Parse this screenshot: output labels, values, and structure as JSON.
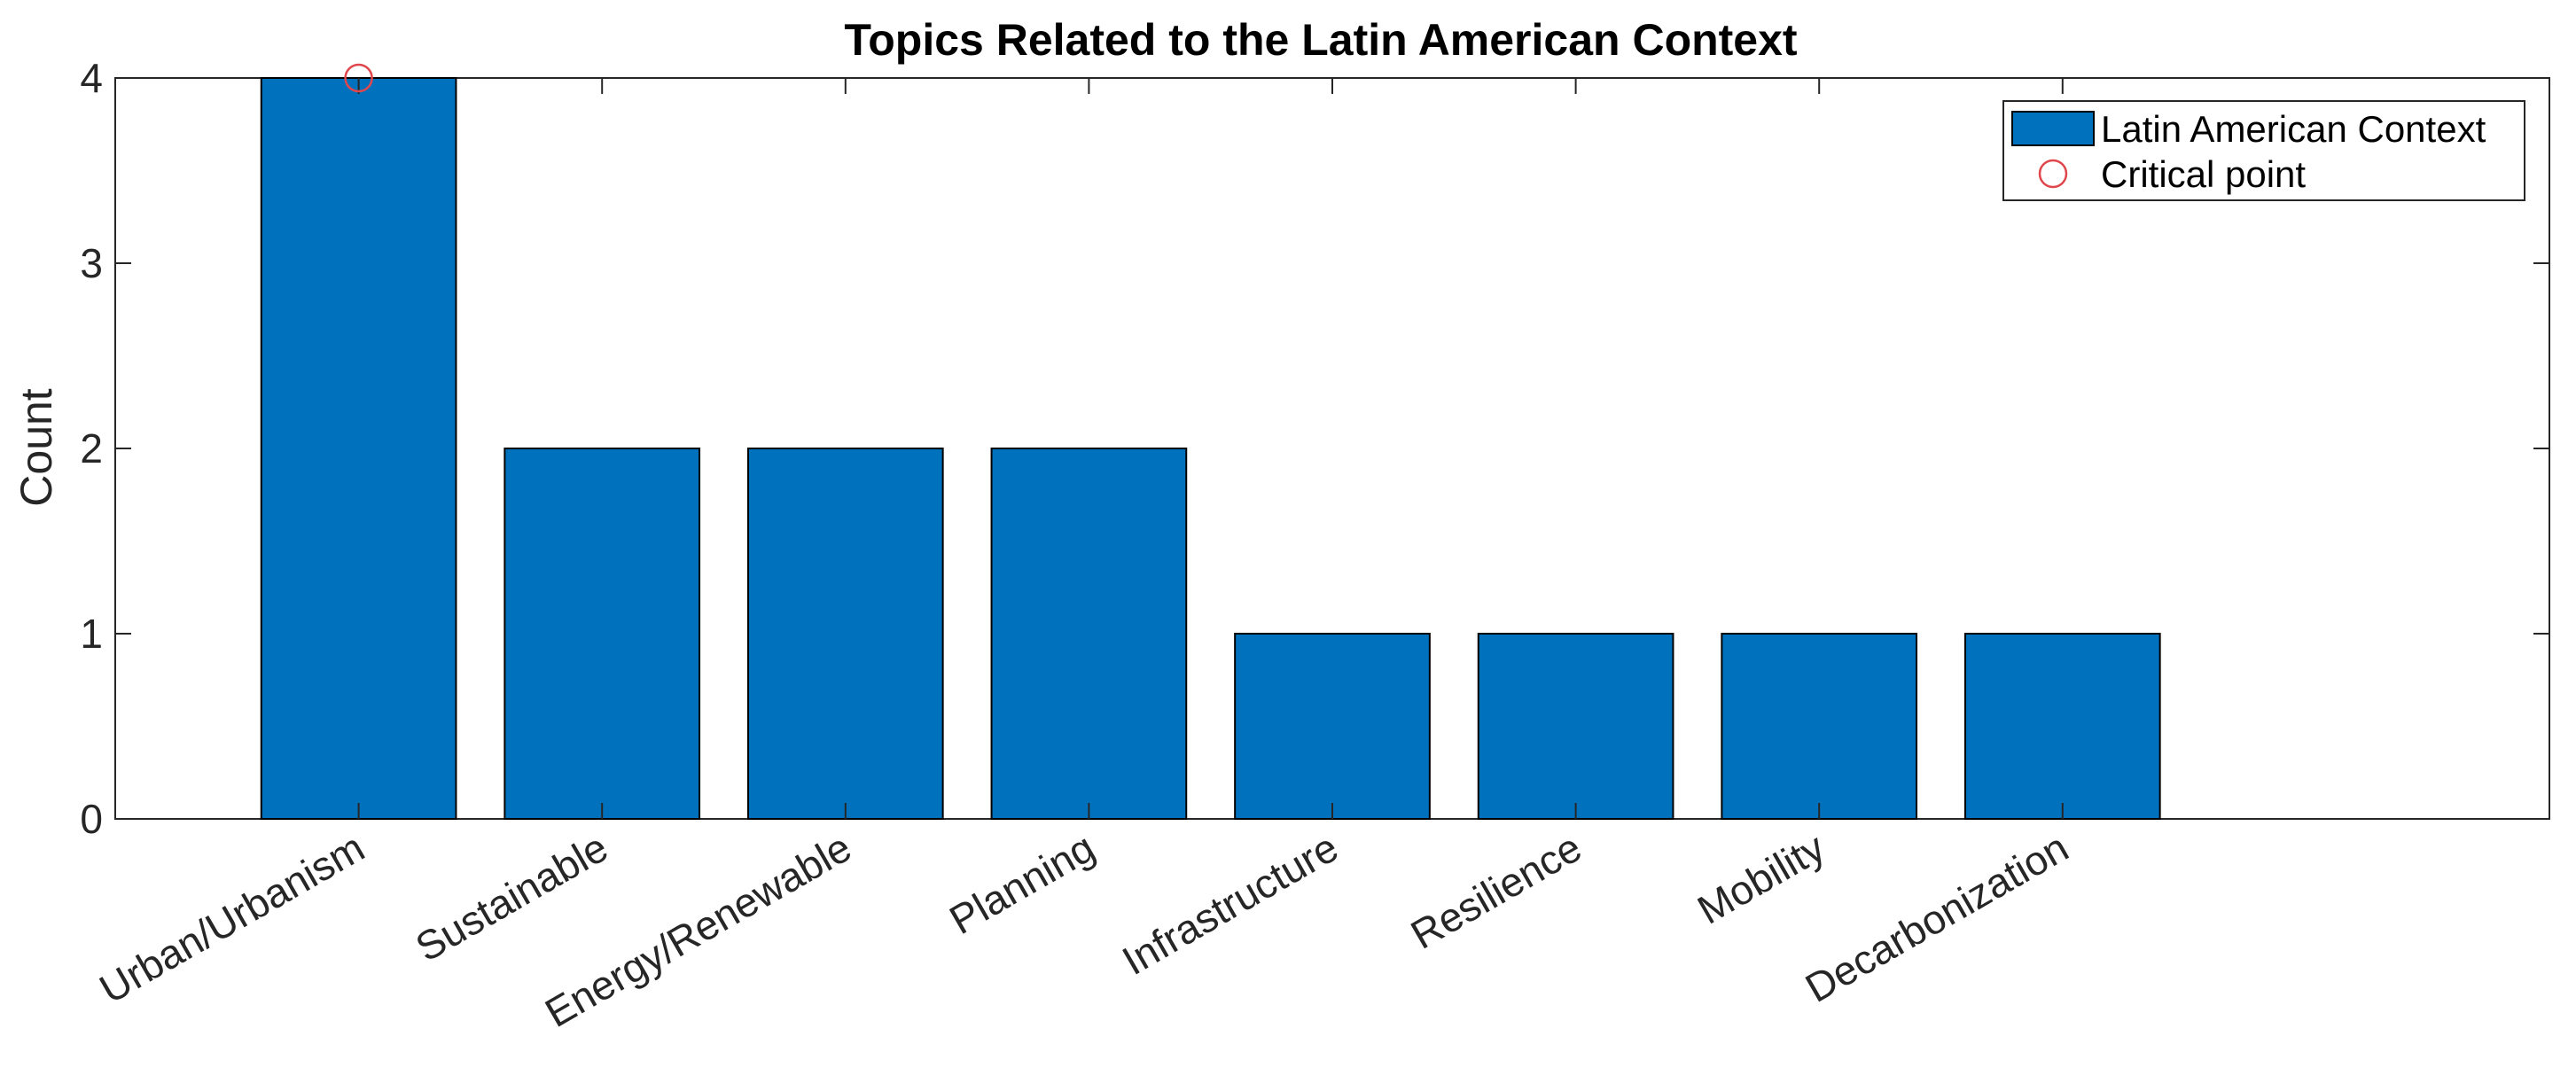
{
  "chart_data": {
    "type": "bar",
    "title": "Topics Related to the Latin American Context",
    "xlabel": "",
    "ylabel": "Count",
    "ylim": [
      0,
      4
    ],
    "yticks": [
      0,
      1,
      2,
      3,
      4
    ],
    "categories": [
      "Urban/Urbanism",
      "Sustainable",
      "Energy/Renewable",
      "Planning",
      "Infrastructure",
      "Resilience",
      "Mobility",
      "Decarbonization"
    ],
    "series": [
      {
        "name": "Latin American Context",
        "values": [
          4,
          2,
          2,
          2,
          1,
          1,
          1,
          1
        ],
        "color": "#0072BD"
      }
    ],
    "markers": [
      {
        "name": "Critical point",
        "category": "Urban/Urbanism",
        "value": 4,
        "color": "#E0474C",
        "shape": "circle"
      }
    ],
    "legend": {
      "position": "top-right",
      "entries": [
        "Latin American Context",
        "Critical point"
      ]
    },
    "grid": false
  }
}
